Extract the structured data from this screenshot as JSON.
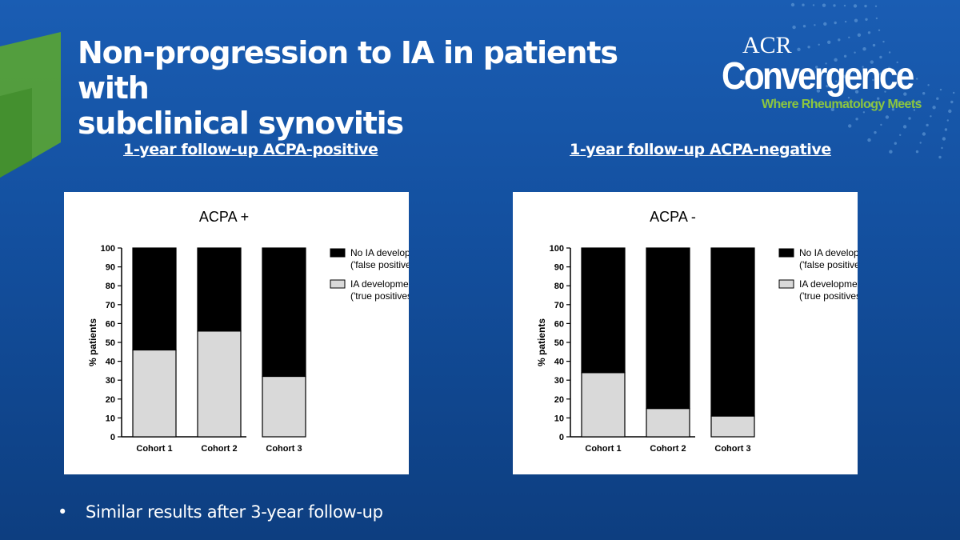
{
  "slide": {
    "title_lines": [
      "Non-progression to IA in patients with",
      "subclinical synovitis"
    ],
    "logo": {
      "acr": "ACR",
      "convergence": "Convergence",
      "tagline": "Where Rheumatology Meets"
    },
    "left_heading": "1-year follow-up ACPA-positive",
    "right_heading": "1-year follow-up ACPA-negative",
    "bullet_mark": "•",
    "bullet": "Similar results after 3-year follow-up",
    "colors": {
      "background": "#1459ac",
      "accent_green": "#8cc63f",
      "bar_black": "#000000",
      "bar_grey": "#d9d9d9"
    }
  },
  "chart_data": [
    {
      "type": "bar",
      "stacked": true,
      "title": "ACPA +",
      "ylabel": "% patients",
      "xlabel": "",
      "ylim": [
        0,
        100
      ],
      "yticks": [
        "0",
        "10",
        "20",
        "30",
        "40",
        "50",
        "60",
        "70",
        "80",
        "90",
        "100"
      ],
      "categories": [
        "Cohort 1",
        "Cohort 2",
        "Cohort 3"
      ],
      "series": [
        {
          "name": "IA development",
          "name_line2": "('true positives')",
          "color": "#d9d9d9",
          "values": [
            46,
            56,
            32
          ]
        },
        {
          "name": "No IA development",
          "name_line2": "('false positives')",
          "color": "#000000",
          "values": [
            54,
            44,
            68
          ]
        }
      ],
      "legend_order": [
        1,
        0
      ],
      "legend": "right"
    },
    {
      "type": "bar",
      "stacked": true,
      "title": "ACPA -",
      "ylabel": "% patients",
      "xlabel": "",
      "ylim": [
        0,
        100
      ],
      "yticks": [
        "0",
        "10",
        "20",
        "30",
        "40",
        "50",
        "60",
        "70",
        "80",
        "90",
        "100"
      ],
      "categories": [
        "Cohort 1",
        "Cohort 2",
        "Cohort 3"
      ],
      "series": [
        {
          "name": "IA development",
          "name_line2": "('true positives')",
          "color": "#d9d9d9",
          "values": [
            34,
            15,
            11
          ]
        },
        {
          "name": "No IA development",
          "name_line2": "('false positives')",
          "color": "#000000",
          "values": [
            66,
            85,
            89
          ]
        }
      ],
      "legend_order": [
        1,
        0
      ],
      "legend": "right"
    }
  ]
}
